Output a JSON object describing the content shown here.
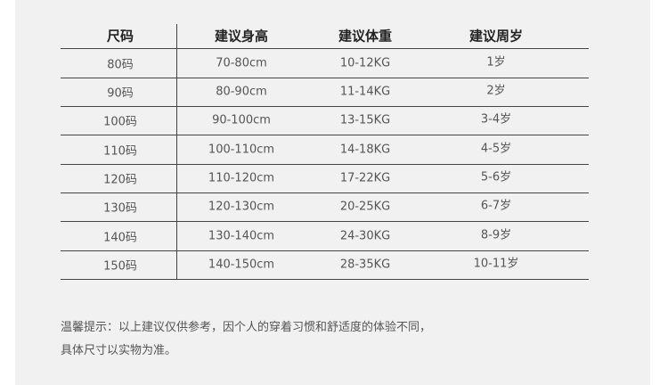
{
  "table": {
    "headers": [
      "尺码",
      "建议身高",
      "建议体重",
      "建议周岁"
    ],
    "rows": [
      [
        "80码",
        "70-80cm",
        "10-12KG",
        "1岁"
      ],
      [
        "90码",
        "80-90cm",
        "11-14KG",
        "2岁"
      ],
      [
        "100码",
        "90-100cm",
        "13-15KG",
        "3-4岁"
      ],
      [
        "110码",
        "100-110cm",
        "14-18KG",
        "4-5岁"
      ],
      [
        "120码",
        "110-120cm",
        "17-22KG",
        "5-6岁"
      ],
      [
        "130码",
        "120-130cm",
        "20-25KG",
        "6-7岁"
      ],
      [
        "140码",
        "130-140cm",
        "24-30KG",
        "8-9岁"
      ],
      [
        "150码",
        "140-150cm",
        "28-35KG",
        "10-11岁"
      ]
    ]
  },
  "note": {
    "line1": "温馨提示：以上建议仅供参考，因个人的穿着习惯和舒适度的体验不同，",
    "line2": "具体尺寸以实物为准。"
  },
  "colors": {
    "background": "#f1f1f1",
    "rule": "#444444",
    "text": "#555555"
  }
}
